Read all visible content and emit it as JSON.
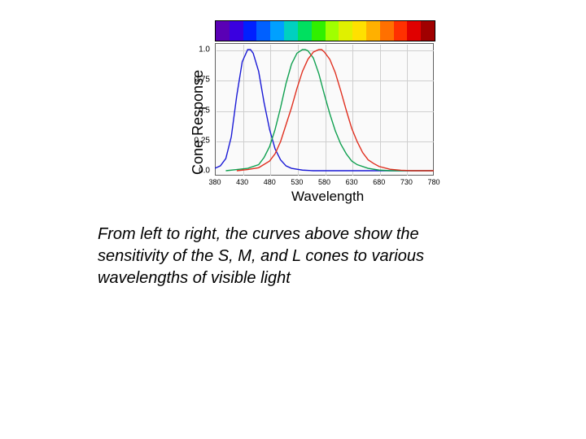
{
  "chart": {
    "type": "line",
    "ylabel": "Cone Response",
    "xlabel": "Wavelength",
    "label_fontsize": 18,
    "tick_fontsize": 10,
    "background_color": "#fafafa",
    "frame_border_color": "#606060",
    "grid_color": "#cfcfcf",
    "xlim": [
      380,
      780
    ],
    "ylim": [
      0.0,
      1.0
    ],
    "yticks": [
      0.0,
      0.25,
      0.5,
      0.75,
      1.0
    ],
    "ytick_labels": [
      "0.0",
      "0.25",
      "0.5",
      "0.75",
      "1.0"
    ],
    "xticks": [
      380,
      430,
      480,
      530,
      580,
      630,
      680,
      730,
      780
    ],
    "line_width": 1.4,
    "spectrum_colors": [
      "#5a00b5",
      "#3a00e0",
      "#0020ff",
      "#0060ff",
      "#00a0ff",
      "#00d0c0",
      "#00e060",
      "#30f000",
      "#a0ff00",
      "#e0f000",
      "#ffe000",
      "#ffb000",
      "#ff7000",
      "#ff3000",
      "#e00000",
      "#a00000"
    ],
    "spectrum_border": "#000000",
    "series": [
      {
        "name": "S",
        "color": "#1a1ad6",
        "points": [
          [
            380,
            0.02
          ],
          [
            390,
            0.04
          ],
          [
            400,
            0.1
          ],
          [
            410,
            0.28
          ],
          [
            420,
            0.62
          ],
          [
            430,
            0.9
          ],
          [
            440,
            1.0
          ],
          [
            445,
            1.0
          ],
          [
            450,
            0.97
          ],
          [
            460,
            0.82
          ],
          [
            470,
            0.56
          ],
          [
            480,
            0.34
          ],
          [
            490,
            0.18
          ],
          [
            500,
            0.09
          ],
          [
            510,
            0.04
          ],
          [
            520,
            0.02
          ],
          [
            540,
            0.005
          ],
          [
            560,
            0.0
          ],
          [
            780,
            0.0
          ]
        ]
      },
      {
        "name": "M",
        "color": "#10a050",
        "points": [
          [
            400,
            0.0
          ],
          [
            420,
            0.01
          ],
          [
            440,
            0.02
          ],
          [
            460,
            0.05
          ],
          [
            470,
            0.11
          ],
          [
            480,
            0.2
          ],
          [
            490,
            0.34
          ],
          [
            500,
            0.52
          ],
          [
            510,
            0.72
          ],
          [
            520,
            0.88
          ],
          [
            530,
            0.97
          ],
          [
            540,
            1.0
          ],
          [
            545,
            1.0
          ],
          [
            550,
            0.99
          ],
          [
            560,
            0.93
          ],
          [
            570,
            0.8
          ],
          [
            580,
            0.63
          ],
          [
            590,
            0.47
          ],
          [
            600,
            0.33
          ],
          [
            610,
            0.22
          ],
          [
            620,
            0.14
          ],
          [
            630,
            0.08
          ],
          [
            640,
            0.05
          ],
          [
            660,
            0.02
          ],
          [
            680,
            0.005
          ],
          [
            700,
            0.0
          ],
          [
            780,
            0.0
          ]
        ]
      },
      {
        "name": "L",
        "color": "#e03020",
        "points": [
          [
            420,
            0.0
          ],
          [
            440,
            0.01
          ],
          [
            460,
            0.025
          ],
          [
            480,
            0.08
          ],
          [
            490,
            0.14
          ],
          [
            500,
            0.24
          ],
          [
            510,
            0.38
          ],
          [
            520,
            0.52
          ],
          [
            530,
            0.68
          ],
          [
            540,
            0.82
          ],
          [
            550,
            0.92
          ],
          [
            560,
            0.98
          ],
          [
            570,
            1.0
          ],
          [
            575,
            1.0
          ],
          [
            580,
            0.98
          ],
          [
            590,
            0.92
          ],
          [
            600,
            0.81
          ],
          [
            610,
            0.66
          ],
          [
            620,
            0.5
          ],
          [
            630,
            0.35
          ],
          [
            640,
            0.24
          ],
          [
            650,
            0.15
          ],
          [
            660,
            0.09
          ],
          [
            670,
            0.06
          ],
          [
            680,
            0.035
          ],
          [
            700,
            0.012
          ],
          [
            720,
            0.004
          ],
          [
            740,
            0.0
          ],
          [
            780,
            0.0
          ]
        ]
      }
    ]
  },
  "caption": "From left to right, the curves above show the sensitivity of the S, M, and L cones to various wavelengths of visible light",
  "caption_fontsize": 20,
  "caption_font_style": "italic"
}
